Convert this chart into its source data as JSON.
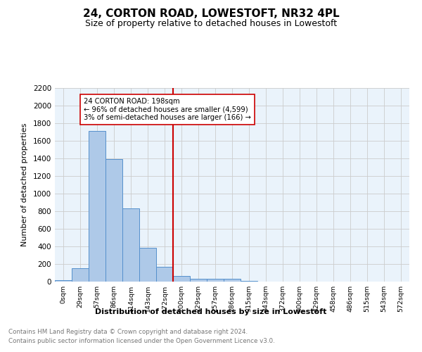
{
  "title": "24, CORTON ROAD, LOWESTOFT, NR32 4PL",
  "subtitle": "Size of property relative to detached houses in Lowestoft",
  "xlabel": "Distribution of detached houses by size in Lowestoft",
  "ylabel": "Number of detached properties",
  "bin_labels": [
    "0sqm",
    "29sqm",
    "57sqm",
    "86sqm",
    "114sqm",
    "143sqm",
    "172sqm",
    "200sqm",
    "229sqm",
    "257sqm",
    "286sqm",
    "315sqm",
    "343sqm",
    "372sqm",
    "400sqm",
    "429sqm",
    "458sqm",
    "486sqm",
    "515sqm",
    "543sqm",
    "572sqm"
  ],
  "bar_values": [
    15,
    155,
    1710,
    1390,
    830,
    385,
    165,
    65,
    35,
    30,
    30,
    10,
    0,
    0,
    0,
    0,
    0,
    0,
    0,
    0,
    0
  ],
  "bar_color": "#aec9e8",
  "bar_edge_color": "#5590cc",
  "vline_pos": 6.5,
  "property_line_label": "24 CORTON ROAD: 198sqm",
  "annotation_line1": "← 96% of detached houses are smaller (4,599)",
  "annotation_line2": "3% of semi-detached houses are larger (166) →",
  "vline_color": "#cc0000",
  "ylim": [
    0,
    2200
  ],
  "yticks": [
    0,
    200,
    400,
    600,
    800,
    1000,
    1200,
    1400,
    1600,
    1800,
    2000,
    2200
  ],
  "footer_line1": "Contains HM Land Registry data © Crown copyright and database right 2024.",
  "footer_line2": "Contains public sector information licensed under the Open Government Licence v3.0.",
  "bg_color": "#ffffff",
  "plot_bg_color": "#eaf3fb",
  "grid_color": "#cccccc",
  "font_family": "DejaVu Sans"
}
